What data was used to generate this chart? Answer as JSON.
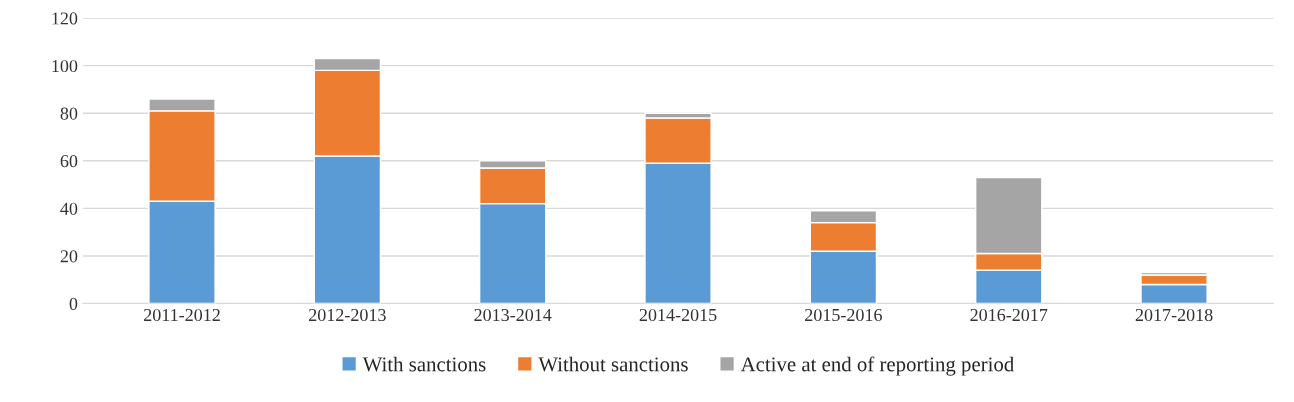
{
  "chart_data": {
    "type": "bar",
    "stacked": true,
    "categories": [
      "2011-2012",
      "2012-2013",
      "2013-2014",
      "2014-2015",
      "2015-2016",
      "2016-2017",
      "2017-2018"
    ],
    "series": [
      {
        "name": "With sanctions",
        "color": "#5b9bd5",
        "values": [
          43,
          62,
          42,
          59,
          22,
          14,
          8
        ]
      },
      {
        "name": "Without sanctions",
        "color": "#ed7d31",
        "values": [
          38,
          36,
          15,
          19,
          12,
          7,
          4
        ]
      },
      {
        "name": "Active at end of reporting period",
        "color": "#a5a5a5",
        "values": [
          5,
          5,
          3,
          2,
          5,
          32,
          1
        ]
      }
    ],
    "ylim": [
      0,
      120
    ],
    "yticks": [
      0,
      20,
      40,
      60,
      80,
      100,
      120
    ],
    "grid": "y",
    "legend": "bottom"
  }
}
